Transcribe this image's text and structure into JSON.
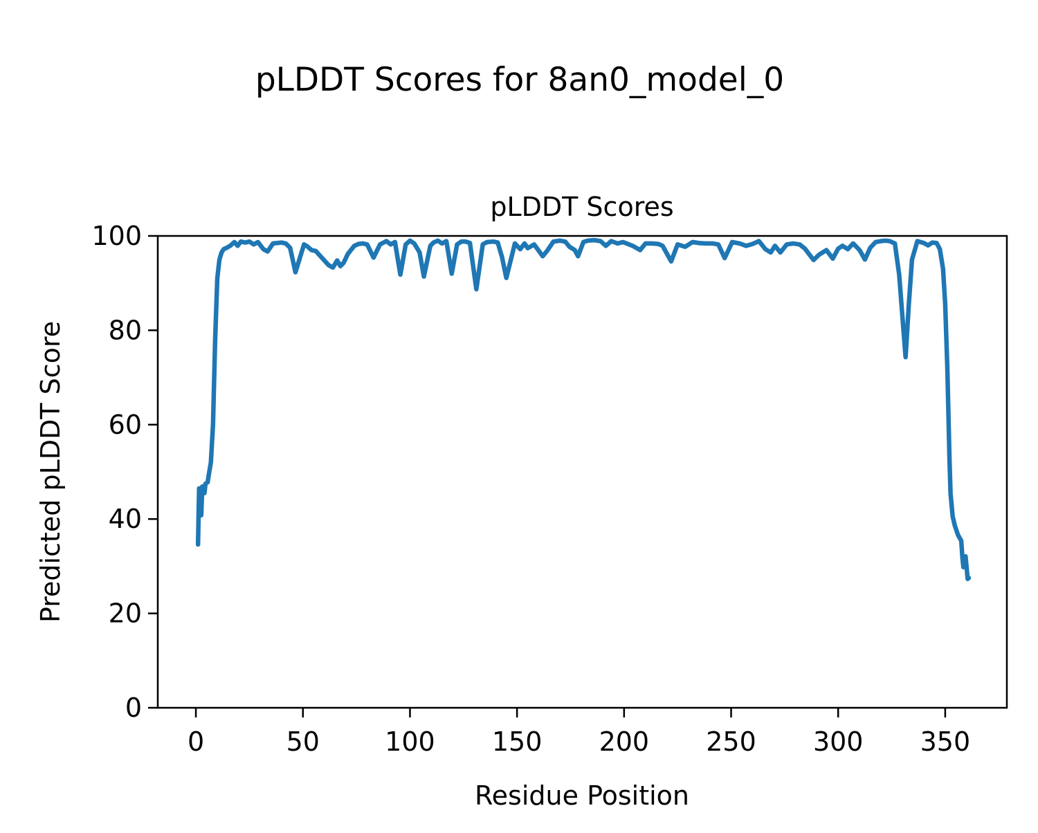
{
  "figure": {
    "background": "#ffffff",
    "title": "pLDDT Scores for 8an0_model_0"
  },
  "chart_data": {
    "type": "line",
    "figure_title": "pLDDT Scores for 8an0_model_0",
    "title": "pLDDT Scores",
    "xlabel": "Residue Position",
    "ylabel": "Predicted pLDDT Score",
    "xlim": [
      -17.8,
      378.8
    ],
    "ylim": [
      0,
      100
    ],
    "xticks": [
      0,
      50,
      100,
      150,
      200,
      250,
      300,
      350
    ],
    "yticks": [
      0,
      20,
      40,
      60,
      80,
      100
    ],
    "grid": false,
    "legend": "none",
    "line_color": "#1f77b4",
    "line_width": 6.5,
    "axis_color": "#000000",
    "series": [
      {
        "name": "pLDDT",
        "points": [
          [
            1,
            34.6
          ],
          [
            1.5,
            46.5
          ],
          [
            2,
            44.0
          ],
          [
            2.5,
            40.8
          ],
          [
            3,
            46.9
          ],
          [
            4,
            45.5
          ],
          [
            4.5,
            47.5
          ],
          [
            5.5,
            47.8
          ],
          [
            6,
            49.3
          ],
          [
            7,
            52.0
          ],
          [
            8,
            60.0
          ],
          [
            9,
            78.0
          ],
          [
            10,
            91.0
          ],
          [
            11,
            95.0
          ],
          [
            12,
            96.5
          ],
          [
            13,
            97.2
          ],
          [
            14,
            97.4
          ],
          [
            16,
            97.9
          ],
          [
            18,
            98.7
          ],
          [
            19.5,
            97.9
          ],
          [
            21,
            98.8
          ],
          [
            23,
            98.6
          ],
          [
            25,
            98.8
          ],
          [
            27,
            98.2
          ],
          [
            29,
            98.7
          ],
          [
            31.5,
            97.2
          ],
          [
            33.5,
            96.7
          ],
          [
            36,
            98.4
          ],
          [
            38,
            98.5
          ],
          [
            40,
            98.6
          ],
          [
            42,
            98.4
          ],
          [
            44,
            97.5
          ],
          [
            46.5,
            92.3
          ],
          [
            48,
            94.5
          ],
          [
            50.5,
            98.2
          ],
          [
            52,
            97.8
          ],
          [
            54,
            97.0
          ],
          [
            56,
            96.8
          ],
          [
            59,
            95.3
          ],
          [
            62,
            93.8
          ],
          [
            64,
            93.3
          ],
          [
            66,
            94.8
          ],
          [
            67.5,
            93.6
          ],
          [
            69,
            94.3
          ],
          [
            71,
            96.2
          ],
          [
            74,
            97.9
          ],
          [
            76,
            98.3
          ],
          [
            78,
            98.4
          ],
          [
            80,
            98.2
          ],
          [
            83,
            95.4
          ],
          [
            86,
            98.2
          ],
          [
            89,
            98.9
          ],
          [
            91,
            98.2
          ],
          [
            93,
            98.7
          ],
          [
            95.5,
            91.8
          ],
          [
            98,
            98.2
          ],
          [
            100,
            99.0
          ],
          [
            102,
            98.4
          ],
          [
            104.5,
            96.5
          ],
          [
            106.5,
            91.4
          ],
          [
            109.5,
            97.9
          ],
          [
            111,
            98.6
          ],
          [
            113,
            99.0
          ],
          [
            115,
            98.4
          ],
          [
            117,
            98.9
          ],
          [
            119.5,
            92.0
          ],
          [
            122,
            98.2
          ],
          [
            124,
            98.8
          ],
          [
            126,
            98.8
          ],
          [
            128,
            98.5
          ],
          [
            131,
            88.7
          ],
          [
            134,
            98.2
          ],
          [
            136,
            98.7
          ],
          [
            139,
            98.8
          ],
          [
            141,
            98.6
          ],
          [
            143,
            95.5
          ],
          [
            145,
            91.1
          ],
          [
            149,
            98.4
          ],
          [
            151.5,
            97.2
          ],
          [
            153.5,
            98.4
          ],
          [
            155,
            97.4
          ],
          [
            158,
            98.2
          ],
          [
            162,
            95.7
          ],
          [
            164,
            96.8
          ],
          [
            167,
            98.8
          ],
          [
            170,
            99.0
          ],
          [
            172.5,
            98.8
          ],
          [
            174.5,
            97.7
          ],
          [
            177,
            97.0
          ],
          [
            178.5,
            95.7
          ],
          [
            181,
            98.7
          ],
          [
            183,
            99.0
          ],
          [
            186,
            99.1
          ],
          [
            189,
            98.9
          ],
          [
            191.5,
            97.9
          ],
          [
            194,
            98.9
          ],
          [
            197,
            98.4
          ],
          [
            199.5,
            98.7
          ],
          [
            204,
            97.9
          ],
          [
            207.5,
            97.0
          ],
          [
            210,
            98.4
          ],
          [
            213,
            98.4
          ],
          [
            216,
            98.3
          ],
          [
            218,
            97.9
          ],
          [
            222,
            94.6
          ],
          [
            225,
            98.2
          ],
          [
            228.5,
            97.7
          ],
          [
            232,
            98.7
          ],
          [
            235,
            98.5
          ],
          [
            238,
            98.4
          ],
          [
            241.5,
            98.4
          ],
          [
            244,
            98.2
          ],
          [
            247,
            95.3
          ],
          [
            250.5,
            98.7
          ],
          [
            254,
            98.4
          ],
          [
            257,
            97.9
          ],
          [
            260,
            98.3
          ],
          [
            263,
            98.9
          ],
          [
            266,
            97.2
          ],
          [
            268.5,
            96.5
          ],
          [
            270.5,
            97.9
          ],
          [
            273,
            96.5
          ],
          [
            276,
            98.2
          ],
          [
            279,
            98.4
          ],
          [
            282,
            98.2
          ],
          [
            284.5,
            97.3
          ],
          [
            288.5,
            94.9
          ],
          [
            291,
            96.0
          ],
          [
            294.5,
            97.0
          ],
          [
            297.5,
            95.2
          ],
          [
            300,
            97.3
          ],
          [
            302,
            97.9
          ],
          [
            304.5,
            97.2
          ],
          [
            307,
            98.4
          ],
          [
            310,
            97.0
          ],
          [
            312.5,
            95.0
          ],
          [
            315,
            97.5
          ],
          [
            317.5,
            98.7
          ],
          [
            320,
            98.9
          ],
          [
            322,
            99.0
          ],
          [
            324,
            98.9
          ],
          [
            326.5,
            98.4
          ],
          [
            328.5,
            91.8
          ],
          [
            330,
            83.0
          ],
          [
            331.5,
            74.3
          ],
          [
            333,
            85.5
          ],
          [
            334.5,
            95.0
          ],
          [
            337,
            98.9
          ],
          [
            338.5,
            98.7
          ],
          [
            340,
            98.5
          ],
          [
            342,
            98.0
          ],
          [
            344,
            98.6
          ],
          [
            346,
            98.5
          ],
          [
            347.5,
            97.2
          ],
          [
            349,
            93.0
          ],
          [
            350,
            85.5
          ],
          [
            351,
            72.0
          ],
          [
            352,
            52.7
          ],
          [
            352.5,
            45.4
          ],
          [
            353.5,
            40.5
          ],
          [
            354.5,
            38.6
          ],
          [
            356,
            36.6
          ],
          [
            357.5,
            35.4
          ],
          [
            358,
            32.0
          ],
          [
            358.5,
            29.8
          ],
          [
            359.5,
            32.1
          ],
          [
            360.5,
            27.3
          ],
          [
            361,
            27.5
          ]
        ]
      }
    ]
  }
}
